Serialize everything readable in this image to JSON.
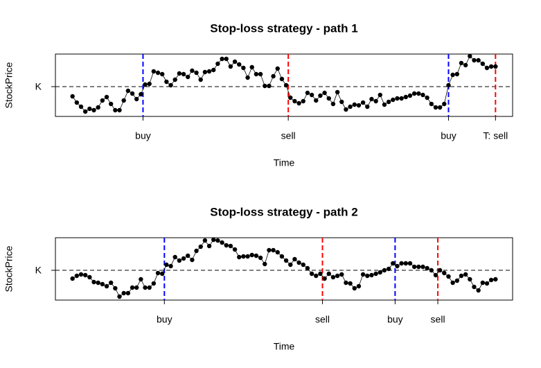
{
  "chart_data": [
    {
      "type": "line",
      "title": "Stop-loss strategy - path 1",
      "xlabel": "Time",
      "ylabel": "StockPrice",
      "x": [
        0,
        1,
        2,
        3,
        4,
        5,
        6,
        7,
        8,
        9,
        10,
        11,
        12,
        13,
        14,
        15,
        16,
        17,
        18,
        19,
        20,
        21,
        22,
        23,
        24,
        25,
        26,
        27,
        28,
        29,
        30,
        31,
        32,
        33,
        34,
        35,
        36,
        37,
        38,
        39,
        40,
        41,
        42,
        43,
        44,
        45,
        46,
        47,
        48,
        49,
        50,
        51,
        52,
        53,
        54,
        55,
        56,
        57,
        58,
        59,
        60,
        61,
        62,
        63,
        64,
        65,
        66,
        67,
        68,
        69,
        70,
        71,
        72,
        73,
        74,
        75,
        76,
        77,
        78,
        79,
        80,
        81,
        82,
        83,
        84,
        85,
        86,
        87,
        88,
        89,
        90,
        91,
        92,
        93,
        94,
        95,
        96,
        97,
        98,
        99
      ],
      "values": [
        -1.4,
        -2.3,
        -2.9,
        -3.6,
        -3.2,
        -3.4,
        -3.0,
        -2.0,
        -1.5,
        -2.5,
        -3.4,
        -3.4,
        -2.0,
        -0.6,
        -1.0,
        -1.8,
        -1.1,
        0.3,
        0.4,
        2.2,
        2.0,
        1.8,
        0.7,
        0.2,
        1.0,
        1.9,
        1.8,
        1.4,
        2.3,
        2.0,
        1.0,
        2.1,
        2.2,
        2.4,
        3.3,
        4.0,
        4.0,
        2.9,
        3.6,
        3.2,
        2.7,
        1.3,
        2.8,
        1.8,
        1.8,
        0.1,
        0.1,
        1.5,
        2.6,
        1.1,
        0.2,
        -1.6,
        -2.1,
        -2.4,
        -2.1,
        -0.9,
        -1.2,
        -2.0,
        -1.3,
        -0.9,
        -1.7,
        -2.5,
        -0.8,
        -2.2,
        -3.3,
        -2.9,
        -2.6,
        -2.7,
        -2.3,
        -2.9,
        -1.8,
        -2.1,
        -1.2,
        -2.6,
        -2.2,
        -1.9,
        -1.7,
        -1.7,
        -1.5,
        -1.3,
        -1.0,
        -1.0,
        -1.2,
        -1.6,
        -2.5,
        -3.0,
        -3.0,
        -2.5,
        0.2,
        1.7,
        1.8,
        3.4,
        3.1,
        4.4,
        3.8,
        3.8,
        3.3,
        2.7,
        2.9,
        2.9
      ],
      "color": "#000000",
      "xlim": [
        -4,
        103
      ],
      "ylim": [
        -4.3,
        4.7
      ],
      "yticks": [
        {
          "value": 0,
          "label": "K"
        }
      ],
      "grid": true,
      "events": [
        {
          "x": 16.5,
          "label": "buy",
          "color": "#0000ff"
        },
        {
          "x": 50.5,
          "label": "sell",
          "color": "#ff0000"
        },
        {
          "x": 88,
          "label": "buy",
          "color": "#0000ff"
        },
        {
          "x": 99,
          "label": "T: sell",
          "color": "#ff0000"
        }
      ]
    },
    {
      "type": "line",
      "title": "Stop-loss strategy - path 2",
      "xlabel": "Time",
      "ylabel": "StockPrice",
      "x": [
        0,
        1,
        2,
        3,
        4,
        5,
        6,
        7,
        8,
        9,
        10,
        11,
        12,
        13,
        14,
        15,
        16,
        17,
        18,
        19,
        20,
        21,
        22,
        23,
        24,
        25,
        26,
        27,
        28,
        29,
        30,
        31,
        32,
        33,
        34,
        35,
        36,
        37,
        38,
        39,
        40,
        41,
        42,
        43,
        44,
        45,
        46,
        47,
        48,
        49,
        50,
        51,
        52,
        53,
        54,
        55,
        56,
        57,
        58,
        59,
        60,
        61,
        62,
        63,
        64,
        65,
        66,
        67,
        68,
        69,
        70,
        71,
        72,
        73,
        74,
        75,
        76,
        77,
        78,
        79,
        80,
        81,
        82,
        83,
        84,
        85,
        86,
        87,
        88,
        89,
        90,
        91,
        92,
        93,
        94,
        95,
        96,
        97,
        98,
        99
      ],
      "values": [
        -1.2,
        -0.8,
        -0.6,
        -0.7,
        -1.0,
        -1.7,
        -1.8,
        -2.0,
        -2.3,
        -1.8,
        -2.6,
        -3.8,
        -3.3,
        -3.3,
        -2.5,
        -2.5,
        -1.3,
        -2.5,
        -2.5,
        -1.9,
        -0.4,
        -0.5,
        0.8,
        0.6,
        1.9,
        1.4,
        1.7,
        2.1,
        1.5,
        2.8,
        3.4,
        4.3,
        3.5,
        4.4,
        4.3,
        4.0,
        3.6,
        3.5,
        3.0,
        1.9,
        2.0,
        2.0,
        2.2,
        2.1,
        1.8,
        0.9,
        2.9,
        2.9,
        2.6,
        2.0,
        1.4,
        0.8,
        1.6,
        1.1,
        0.8,
        0.3,
        -0.5,
        -0.8,
        -0.5,
        -1.2,
        -0.5,
        -1.0,
        -0.8,
        -0.6,
        -1.8,
        -1.9,
        -2.6,
        -2.3,
        -0.6,
        -0.8,
        -0.7,
        -0.5,
        -0.3,
        0.0,
        0.2,
        1.0,
        0.6,
        1.0,
        1.0,
        1.0,
        0.5,
        0.5,
        0.5,
        0.3,
        0.0,
        -0.7,
        0.0,
        -0.4,
        -0.9,
        -1.8,
        -1.5,
        -0.8,
        -0.6,
        -1.3,
        -2.4,
        -2.9,
        -1.8,
        -1.9,
        -1.4,
        -1.3
      ],
      "color": "#000000",
      "xlim": [
        -4,
        103
      ],
      "ylim": [
        -4.3,
        4.7
      ],
      "yticks": [
        {
          "value": 0,
          "label": "K"
        }
      ],
      "grid": true,
      "events": [
        {
          "x": 21.5,
          "label": "buy",
          "color": "#0000ff"
        },
        {
          "x": 58.5,
          "label": "sell",
          "color": "#ff0000"
        },
        {
          "x": 75.5,
          "label": "buy",
          "color": "#0000ff"
        },
        {
          "x": 85.5,
          "label": "sell",
          "color": "#ff0000"
        }
      ]
    }
  ]
}
